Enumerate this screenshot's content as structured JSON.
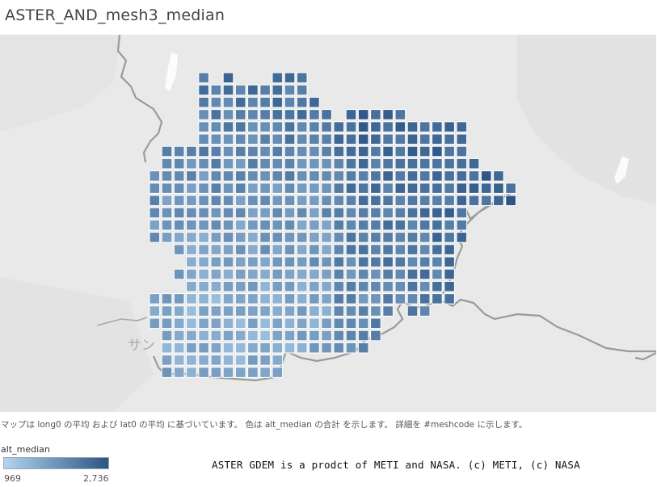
{
  "title": "ASTER_AND_mesh3_median",
  "map": {
    "place_label": "サン",
    "color_low": "#b3d4ef",
    "color_high": "#2a5585",
    "boundary_color": "#9a9a9a",
    "background_color": "#e9e9e9",
    "land_shade_color": "#e2e2e2"
  },
  "caption": "マップは long0 の平均 および lat0 の平均 に基づいています。 色は alt_median の合計 を示します。 詳細を #meshcode に示します。",
  "legend": {
    "title": "alt_median",
    "min_label": "969",
    "max_label": "2,736"
  },
  "credit": "ASTER GDEM is a prodct of METI and NASA. (c) METI, (c) NASA"
}
